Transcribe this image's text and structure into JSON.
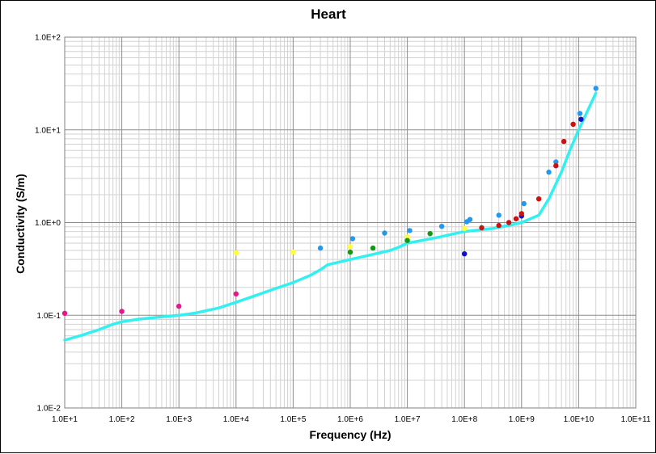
{
  "chart_data": {
    "type": "scatter",
    "title": "Heart",
    "xlabel": "Frequency (Hz)",
    "ylabel": "Conductivity (S/m)",
    "x_scale": "log",
    "y_scale": "log",
    "xlim": [
      10,
      100000000000
    ],
    "ylim": [
      0.01,
      100
    ],
    "grid": true,
    "x_tick_labels": [
      "1.0E+1",
      "1.0E+2",
      "1.0E+3",
      "1.0E+4",
      "1.0E+5",
      "1.0E+6",
      "1.0E+7",
      "1.0E+8",
      "1.0E+9",
      "1.0E+10",
      "1.0E+11"
    ],
    "y_tick_labels": [
      "1.0E-2",
      "1.0E-1",
      "1.0E+0",
      "1.0E+1",
      "1.0E+2"
    ],
    "line": {
      "color": "#33f0f0",
      "x": [
        10,
        20,
        40,
        70,
        100,
        200,
        500,
        1000,
        2000,
        5000,
        10000,
        20000,
        50000,
        100000,
        200000,
        300000,
        400000,
        1000000,
        2000000,
        5000000,
        7000000,
        10000000,
        30000000,
        100000000,
        300000000,
        700000000,
        1000000000,
        2000000000,
        3000000000,
        5000000000,
        7000000000,
        10000000000,
        20000000000
      ],
      "y": [
        0.054,
        0.061,
        0.07,
        0.08,
        0.085,
        0.091,
        0.096,
        0.1,
        0.106,
        0.12,
        0.138,
        0.16,
        0.195,
        0.225,
        0.27,
        0.31,
        0.35,
        0.4,
        0.44,
        0.5,
        0.54,
        0.6,
        0.68,
        0.8,
        0.86,
        0.95,
        1.0,
        1.2,
        1.8,
        3.5,
        6.0,
        10.0,
        25.0
      ]
    },
    "series": [
      {
        "color": "#e8168c",
        "points": [
          [
            10,
            0.105
          ],
          [
            100,
            0.11
          ],
          [
            1000,
            0.125
          ],
          [
            10000,
            0.17
          ]
        ]
      },
      {
        "color": "#ffff33",
        "points": [
          [
            10000,
            0.47
          ],
          [
            100000,
            0.48
          ],
          [
            1000000,
            0.55
          ],
          [
            10000000,
            0.7
          ],
          [
            100000000,
            0.86
          ]
        ]
      },
      {
        "color": "#119911",
        "points": [
          [
            1000000,
            0.48
          ],
          [
            2500000,
            0.53
          ],
          [
            10000000,
            0.64
          ],
          [
            25000000,
            0.76
          ]
        ]
      },
      {
        "color": "#2299ee",
        "points": [
          [
            300000,
            0.53
          ],
          [
            1100000,
            0.67
          ],
          [
            4000000,
            0.77
          ],
          [
            11000000,
            0.82
          ],
          [
            40000000,
            0.91
          ],
          [
            110000000,
            1.02
          ],
          [
            125000000,
            1.08
          ],
          [
            400000000,
            1.2
          ],
          [
            1100000000,
            1.6
          ],
          [
            3000000000,
            3.5
          ],
          [
            4000000000,
            4.5
          ],
          [
            10500000000,
            15.0
          ],
          [
            20000000000,
            28.0
          ]
        ]
      },
      {
        "color": "#1111cc",
        "points": [
          [
            100000000,
            0.46
          ],
          [
            1000000000,
            1.18
          ],
          [
            11000000000,
            13.0
          ]
        ]
      },
      {
        "color": "#cc1111",
        "points": [
          [
            200000000,
            0.88
          ],
          [
            400000000,
            0.93
          ],
          [
            600000000,
            1.0
          ],
          [
            800000000,
            1.1
          ],
          [
            1000000000,
            1.25
          ],
          [
            2000000000,
            1.8
          ],
          [
            4000000000,
            4.1
          ],
          [
            5500000000,
            7.5
          ],
          [
            8000000000,
            11.5
          ]
        ]
      }
    ]
  }
}
